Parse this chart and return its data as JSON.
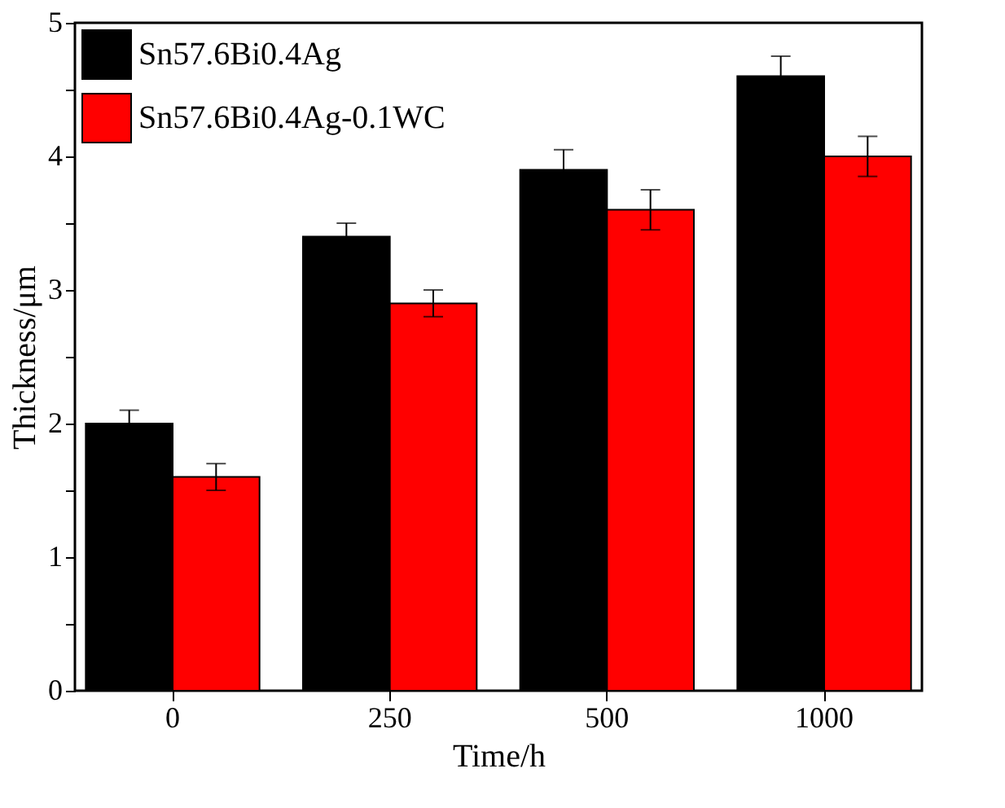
{
  "chart_data": {
    "type": "bar",
    "xlabel": "Time/h",
    "ylabel": "Thickness/μm",
    "categories": [
      "0",
      "250",
      "500",
      "1000"
    ],
    "series": [
      {
        "name": "Sn57.6Bi0.4Ag",
        "color": "#000000",
        "values": [
          2.0,
          3.4,
          3.9,
          4.6
        ],
        "errors": [
          0.1,
          0.1,
          0.15,
          0.15
        ]
      },
      {
        "name": "Sn57.6Bi0.4Ag-0.1WC",
        "color": "#ff0000",
        "values": [
          1.6,
          2.9,
          3.6,
          4.0
        ],
        "errors": [
          0.1,
          0.1,
          0.15,
          0.15
        ]
      }
    ],
    "ylim": [
      0,
      5
    ],
    "yticks": [
      0,
      {
        "value": 0.5,
        "label": null
      },
      1,
      {
        "value": 1.5,
        "label": null
      },
      2,
      {
        "value": 2.5,
        "label": null
      },
      3,
      {
        "value": 3.5,
        "label": null
      },
      4,
      {
        "value": 4.5,
        "label": null
      },
      5
    ],
    "legend": "top left",
    "grid": false
  }
}
